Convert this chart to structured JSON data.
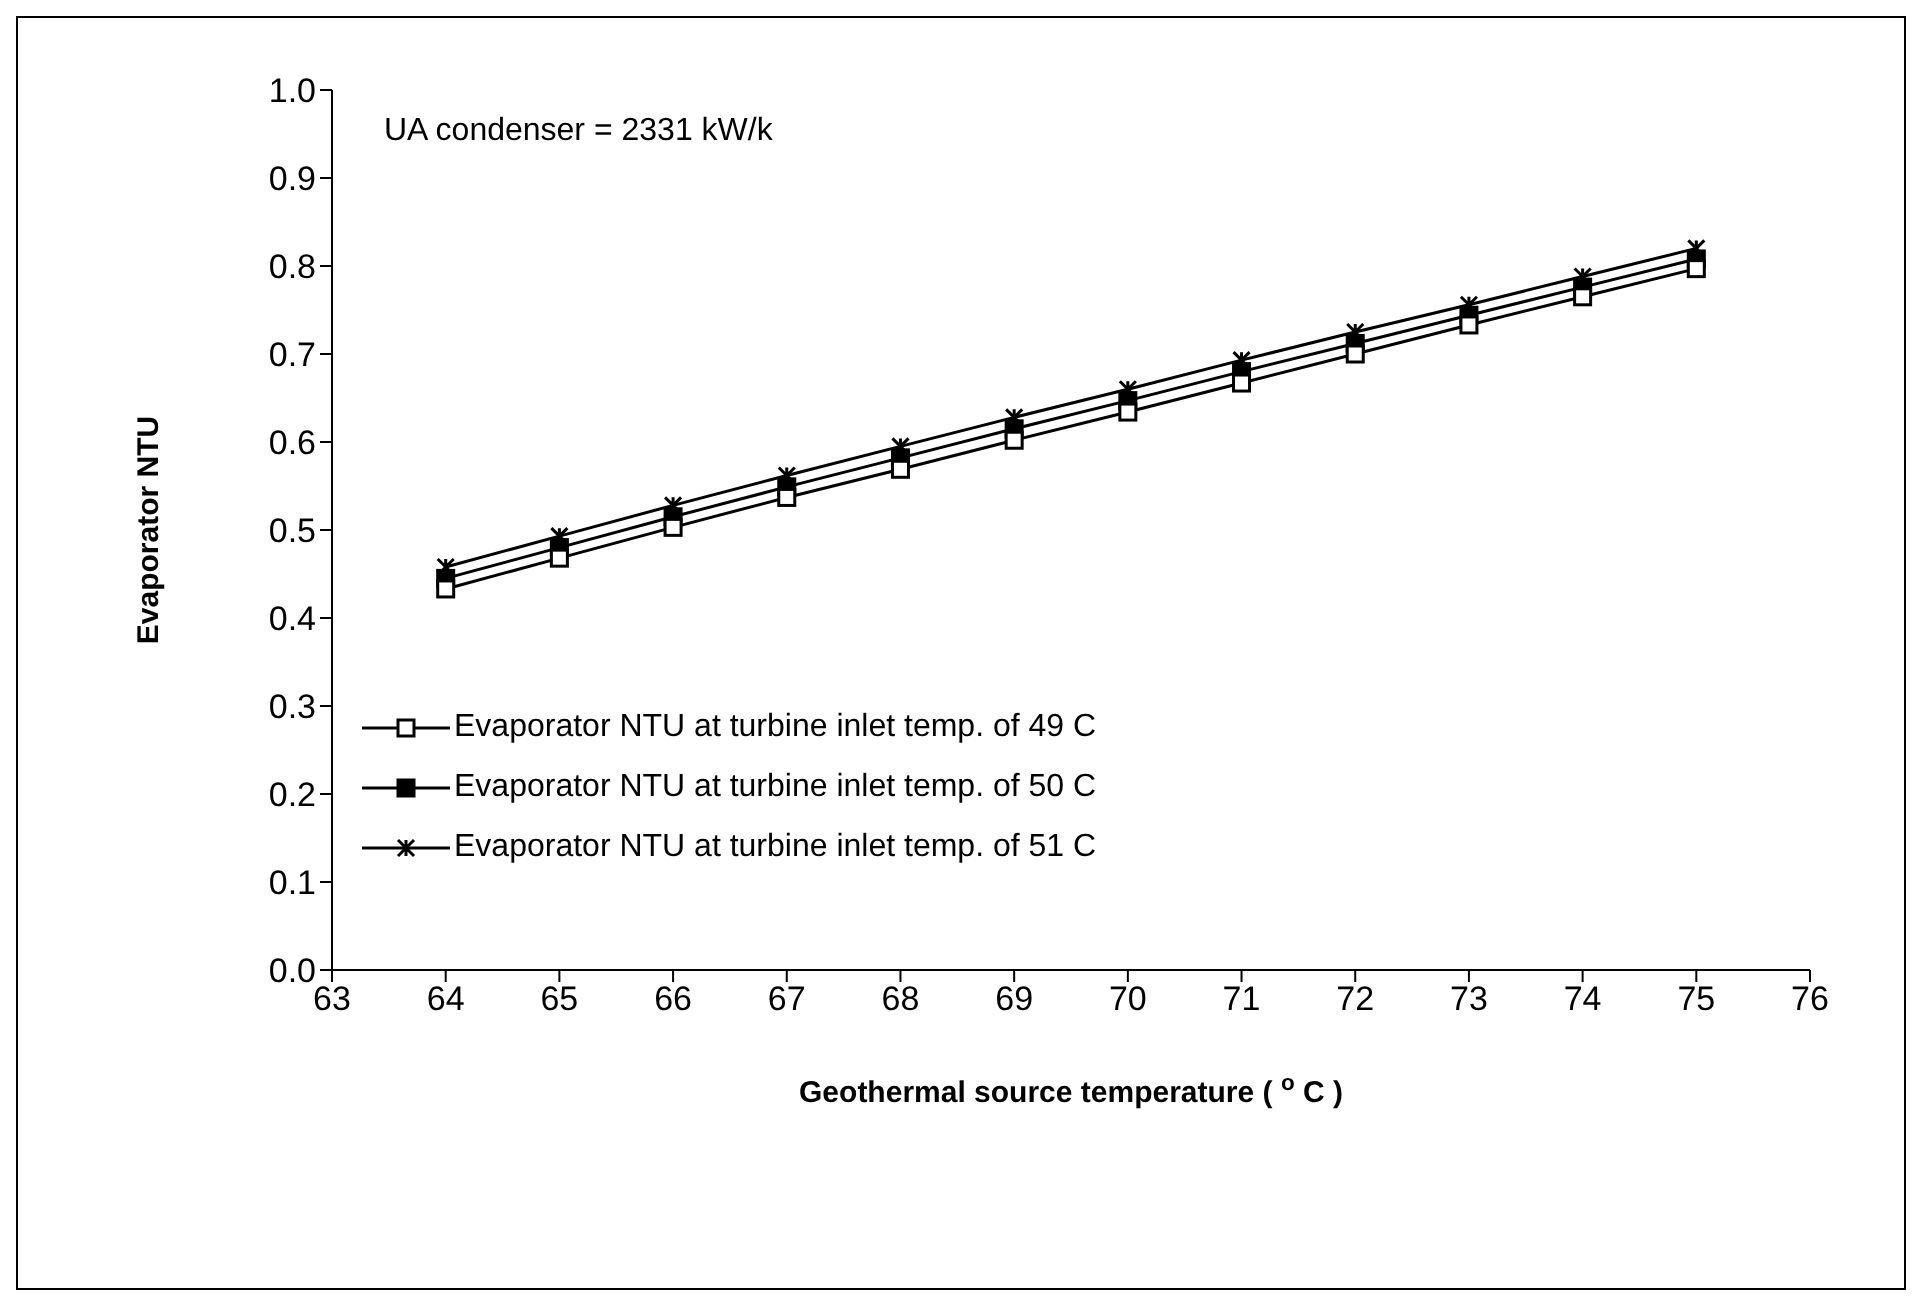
{
  "chart_data": {
    "type": "line",
    "xlabel": "Geothermal source temperature ( $^{o}$ C )",
    "ylabel": "Evaporator NTU",
    "annotations": [
      "UA condenser = 2331 kW/k"
    ],
    "x": [
      64,
      65,
      66,
      67,
      68,
      69,
      70,
      71,
      72,
      73,
      74,
      75
    ],
    "series": [
      {
        "name": "Evaporator NTU at turbine inlet temp. of 49 C",
        "color": "#000000",
        "marker": "square",
        "values": [
          0.433,
          0.468,
          0.503,
          0.537,
          0.569,
          0.602,
          0.634,
          0.667,
          0.7,
          0.733,
          0.765,
          0.797
        ]
      },
      {
        "name": "Evaporator NTU at turbine inlet temp. of 50 C",
        "color": "#000000",
        "marker": "square_filled",
        "values": [
          0.445,
          0.48,
          0.515,
          0.549,
          0.582,
          0.615,
          0.647,
          0.68,
          0.712,
          0.744,
          0.776,
          0.808
        ]
      },
      {
        "name": "Evaporator NTU at turbine inlet temp. of 51 C",
        "color": "#000000",
        "marker": "cross",
        "values": [
          0.458,
          0.493,
          0.528,
          0.562,
          0.595,
          0.628,
          0.66,
          0.693,
          0.725,
          0.756,
          0.788,
          0.82
        ]
      }
    ],
    "xlim": [
      63,
      76
    ],
    "xticks": [
      63,
      64,
      65,
      66,
      67,
      68,
      69,
      70,
      71,
      72,
      73,
      74,
      75,
      76
    ],
    "ylim": [
      0,
      1
    ],
    "yticks": [
      {
        "value": 0,
        "label": "0.0"
      },
      {
        "value": 0.1,
        "label": "0.1"
      },
      {
        "value": 0.2,
        "label": "0.2"
      },
      {
        "value": 0.3,
        "label": "0.3"
      },
      {
        "value": 0.4,
        "label": "0.4"
      },
      {
        "value": 0.5,
        "label": "0.5"
      },
      {
        "value": 0.6,
        "label": "0.6"
      },
      {
        "value": 0.7,
        "label": "0.7"
      },
      {
        "value": 0.8,
        "label": "0.8"
      },
      {
        "value": 0.9,
        "label": "0.9"
      },
      {
        "value": 1,
        "label": "1.0"
      }
    ],
    "grid": false,
    "legend": "bottom left",
    "line_style": "solid"
  }
}
